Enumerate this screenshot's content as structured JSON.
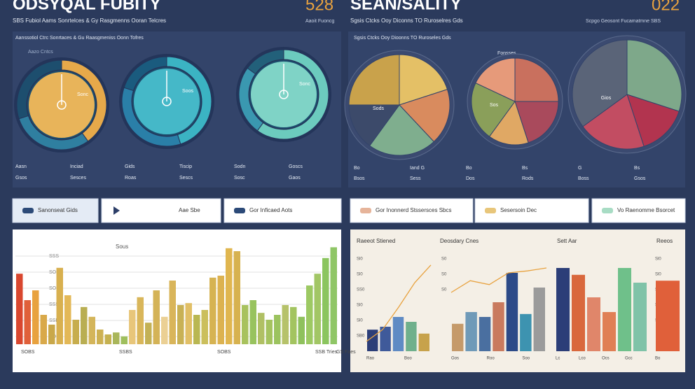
{
  "header_left": {
    "title": "ODSYQAL FUBITY",
    "number": "528",
    "subtitle": "SBS Fubiol Aams Sonrtelces & Gy Rasgmenns Ooran Telcres",
    "note": "Aaoit Fuoncg"
  },
  "header_right": {
    "title": "SEAN/SALITY",
    "number": "022",
    "subtitle": "Sgsis Ctcks Ooy Diconns TO Ruroselres Gds",
    "note": "Scpgo Geosont Fucamatmne SBS"
  },
  "gauges": {
    "caption": "Aanssotiol Ctrc Sonrtaces & Gu Raasgmeniss Oonn Tofres",
    "sub": "Aazo Cntcs",
    "items": [
      {
        "segments": [
          40,
          30,
          30
        ],
        "colors": [
          "#e6a94a",
          "#2f7fa0",
          "#1d4e6e"
        ],
        "fill": "#e8b45a",
        "label": "Sonc"
      },
      {
        "segments": [
          45,
          35,
          20
        ],
        "colors": [
          "#3bb3c3",
          "#2a7fa8",
          "#1a5b7e"
        ],
        "fill": "#45b8c8",
        "label": "Soos"
      },
      {
        "segments": [
          60,
          25,
          15
        ],
        "colors": [
          "#6ccbbe",
          "#3a98b0",
          "#22607a"
        ],
        "fill": "#7fd3c6",
        "label": "Sonc"
      }
    ],
    "footer": [
      "Aasn",
      "Inciad",
      "Gids",
      "Tiscip",
      "Sodn",
      "Goscs",
      "Gsos",
      "Sesces",
      "Roas",
      "Sescs",
      "Sosc",
      "Gaos"
    ]
  },
  "pies": {
    "caption": "Sgsis Ctcks Ooy Dioonns TO Ruroseles Gds",
    "sub": "Fonsses",
    "items": [
      {
        "values": [
          20,
          18,
          22,
          15,
          25
        ],
        "colors": [
          "#e4c066",
          "#d98b5e",
          "#7fae8e",
          "#3c4a6a",
          "#c9a24b"
        ],
        "label": "Sods"
      },
      {
        "values": [
          25,
          20,
          15,
          22,
          18
        ],
        "colors": [
          "#c9705e",
          "#a94a5c",
          "#e0a864",
          "#8a9f5a",
          "#e69a7a"
        ],
        "label": "Sos"
      },
      {
        "values": [
          30,
          15,
          20,
          35
        ],
        "colors": [
          "#7ea88a",
          "#b2344f",
          "#c24d62",
          "#5a6478"
        ],
        "label": "Gios"
      }
    ],
    "footer": [
      "Bo",
      "Iand G",
      "Bo",
      "Bs",
      "G",
      "Bs",
      "Bsos",
      "Sess",
      "Dos",
      "Rods",
      "Boss",
      "Gsos"
    ]
  },
  "buttons": [
    "Sanonseat Gids",
    "Aae Sbe",
    "Gor Inficaed Aots",
    "Gor Inonnerd Stssersces Sbcs",
    "Sesersoin Dec",
    "Vo Raenomme Bsorcet"
  ],
  "bar_panel": {
    "title": "Sous",
    "yticks": [
      "SSS",
      "SOG",
      "SOS",
      "SSS",
      "SSB",
      "SOG"
    ],
    "xlabels": [
      "SOBS",
      "SSBS",
      "SOBS",
      "SSB Tries",
      "GS Faes"
    ],
    "values": [
      72,
      45,
      55,
      30,
      20,
      78,
      50,
      25,
      38,
      28,
      15,
      10,
      12,
      8,
      35,
      48,
      22,
      55,
      28,
      65,
      40,
      42,
      30,
      35,
      68,
      70,
      98,
      95,
      40,
      45,
      32,
      25,
      30,
      40,
      38,
      28,
      60,
      72,
      88,
      99
    ],
    "colors": [
      "#d9472f",
      "#e0603a",
      "#e8a23f",
      "#d9a94a",
      "#c9a84a",
      "#d8b04f",
      "#e3b857",
      "#c7ad4d",
      "#b9ae52",
      "#d4b55a",
      "#cdb153",
      "#c5b150",
      "#a9b65a",
      "#9fbf5d",
      "#e8c67a",
      "#d9b65a",
      "#c3b155",
      "#d4b357",
      "#ebd094",
      "#d9b55a",
      "#c8b155",
      "#e1bf66",
      "#b9b752",
      "#cbbf5c",
      "#d6b352",
      "#dcb250",
      "#e0b64f",
      "#d7b24f",
      "#a8c25d",
      "#98c35e",
      "#b0c064",
      "#a5c35f",
      "#9cc35f",
      "#b6c26a",
      "#a3c460",
      "#8fc15d",
      "#9dc963",
      "#a2c665",
      "#8bc55f",
      "#8fc666"
    ]
  },
  "mini_charts": [
    {
      "title": "Raeeot Stiened",
      "ylabels": [
        "Sl0",
        "Sl0",
        "SS0",
        "Sl0",
        "Sl0",
        "SB0"
      ],
      "xlabels": [
        "Rao",
        "Boo"
      ],
      "values": [
        22,
        25,
        35,
        30,
        18
      ],
      "colors": [
        "#2c3e78",
        "#3f5a9a",
        "#5f8bc4",
        "#6fb08c",
        "#c7a24b"
      ],
      "line": [
        10,
        22,
        45,
        70,
        88
      ]
    },
    {
      "title": "Deosdary Cnes",
      "ylabels": [
        "S0",
        "S0",
        "S0"
      ],
      "xlabels": [
        "Gos",
        "Roo",
        "Soo"
      ],
      "values": [
        28,
        40,
        35,
        50,
        80,
        38,
        65
      ],
      "colors": [
        "#c59a6a",
        "#6f9ab8",
        "#4a6fa0",
        "#c97a5e",
        "#2c4a88",
        "#3d93b0",
        "#9b9b9b"
      ],
      "line": [
        60,
        72,
        68,
        80,
        82,
        85
      ]
    },
    {
      "title": "Sett Aar",
      "ylabels": [],
      "xlabels": [
        "Lc",
        "Lco",
        "Ocs",
        "Gcc"
      ],
      "values": [
        85,
        78,
        55,
        40,
        85,
        70
      ],
      "colors": [
        "#2c3e78",
        "#d9683d",
        "#e0866a",
        "#e07f55",
        "#6fc08a",
        "#7fc3a8"
      ],
      "line": []
    },
    {
      "title": "Reeos",
      "ylabels": [
        "Sl0",
        "Sl0",
        "Sl0",
        "SS0",
        "Sl0"
      ],
      "xlabels": [
        "Bo"
      ],
      "values": [
        72
      ],
      "colors": [
        "#e0603a"
      ],
      "line": []
    }
  ]
}
